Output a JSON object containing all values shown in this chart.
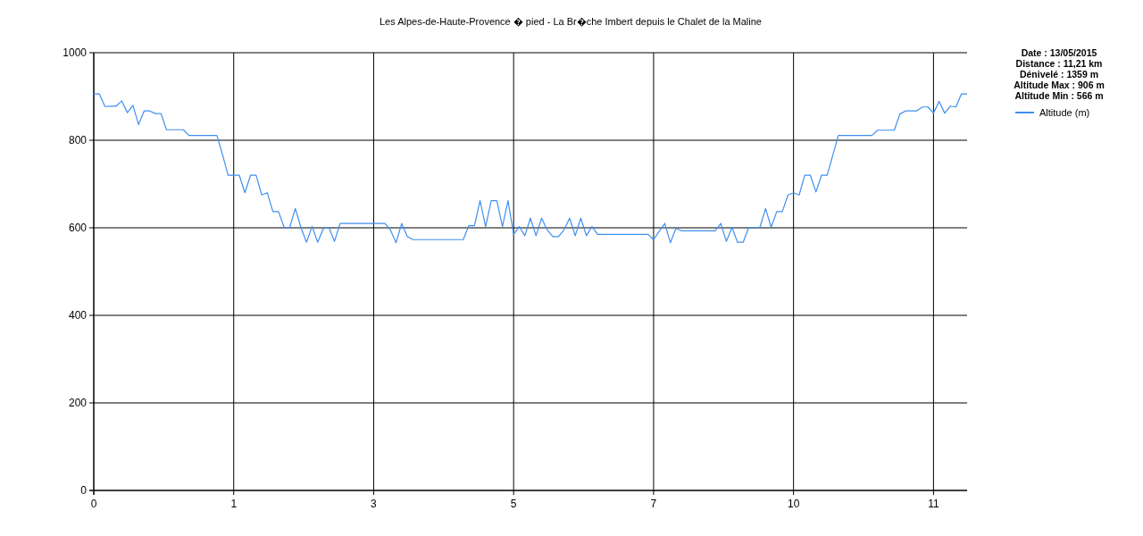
{
  "chart_data": {
    "type": "line",
    "title": "Les Alpes-de-Haute-Provence � pied - La Br�che Imbert depuis le Chalet de la Maline",
    "annotations": [
      "Date : 13/05/2015",
      "Distance : 11,21 km",
      "Dénivelé : 1359 m",
      "Altitude Max : 906 m",
      "Altitude Min : 566 m"
    ],
    "categories": [
      "0",
      null,
      null,
      null,
      null,
      null,
      null,
      null,
      null,
      null,
      null,
      null,
      null,
      null,
      null,
      null,
      null,
      null,
      null,
      null,
      null,
      null,
      null,
      null,
      null,
      "1",
      null,
      null,
      null,
      null,
      null,
      null,
      null,
      null,
      null,
      null,
      null,
      null,
      null,
      null,
      null,
      null,
      null,
      null,
      null,
      null,
      null,
      null,
      null,
      null,
      "3",
      null,
      null,
      null,
      null,
      null,
      null,
      null,
      null,
      null,
      null,
      null,
      null,
      null,
      null,
      null,
      null,
      null,
      null,
      null,
      null,
      null,
      null,
      null,
      null,
      "5",
      null,
      null,
      null,
      null,
      null,
      null,
      null,
      null,
      null,
      null,
      null,
      null,
      null,
      null,
      null,
      null,
      null,
      null,
      null,
      null,
      null,
      null,
      null,
      null,
      "7",
      null,
      null,
      null,
      null,
      null,
      null,
      null,
      null,
      null,
      null,
      null,
      null,
      null,
      null,
      null,
      null,
      null,
      null,
      null,
      null,
      null,
      null,
      null,
      null,
      "10",
      null,
      null,
      null,
      null,
      null,
      null,
      null,
      null,
      null,
      null,
      null,
      null,
      null,
      null,
      null,
      null,
      null,
      null,
      null,
      null,
      null,
      null,
      null,
      null,
      "11",
      null,
      null,
      null,
      null,
      null,
      null
    ],
    "ylim": [
      0,
      1000
    ],
    "yticks": [
      0,
      200,
      400,
      600,
      800,
      1000
    ],
    "grid": true,
    "legend": "right",
    "series": [
      {
        "name": "Altitude (m)",
        "color": "#3f8ff0",
        "values": [
          906,
          906,
          877,
          878,
          878,
          890,
          863,
          880,
          836,
          867,
          867,
          861,
          861,
          824,
          824,
          824,
          824,
          811,
          811,
          811,
          811,
          811,
          811,
          767,
          720,
          720,
          720,
          680,
          720,
          720,
          675,
          680,
          637,
          637,
          601,
          601,
          644,
          601,
          567,
          603,
          567,
          598,
          601,
          569,
          610,
          610,
          610,
          610,
          610,
          610,
          610,
          610,
          610,
          595,
          566,
          610,
          580,
          573,
          573,
          573,
          573,
          573,
          573,
          573,
          573,
          573,
          573,
          605,
          605,
          662,
          603,
          662,
          662,
          603,
          662,
          585,
          603,
          582,
          622,
          582,
          622,
          595,
          580,
          580,
          595,
          622,
          582,
          622,
          582,
          603,
          585,
          585,
          585,
          585,
          585,
          585,
          585,
          585,
          585,
          585,
          573,
          592,
          610,
          566,
          599,
          593,
          593,
          593,
          593,
          593,
          593,
          593,
          610,
          569,
          601,
          567,
          567,
          601,
          601,
          601,
          644,
          601,
          637,
          637,
          675,
          680,
          675,
          720,
          720,
          682,
          720,
          720,
          765,
          811,
          811,
          811,
          811,
          811,
          811,
          811,
          823,
          823,
          823,
          823,
          860,
          867,
          867,
          867,
          876,
          876,
          862,
          889,
          862,
          878,
          876,
          906,
          906
        ]
      }
    ]
  }
}
